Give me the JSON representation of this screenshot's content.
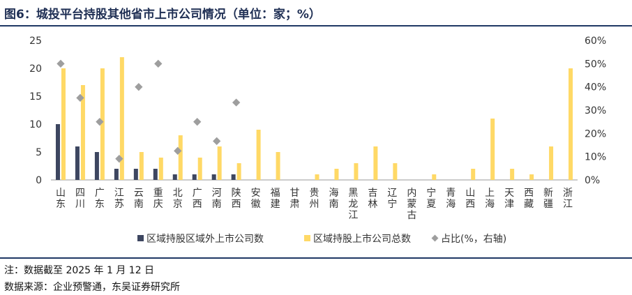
{
  "header": {
    "title": "图6：城投平台持股其他省市上市公司情况（单位：家；%）"
  },
  "notes": {
    "note": "注：数据截至 2025 年 1 月 12 日",
    "source": "数据来源：企业预警通，东吴证券研究所"
  },
  "colors": {
    "outside": "#3d4660",
    "total": "#ffd966",
    "ratio": "#9e9e9e",
    "rule": "#1f3864"
  },
  "chart_data": {
    "type": "bar",
    "title": "",
    "categories": [
      "山东",
      "四川",
      "广东",
      "江苏",
      "云南",
      "重庆",
      "北京",
      "广西",
      "河南",
      "陕西",
      "安徽",
      "福建",
      "甘肃",
      "贵州",
      "海南",
      "黑龙江",
      "吉林",
      "辽宁",
      "内蒙古",
      "宁夏",
      "青海",
      "山西",
      "上海",
      "天津",
      "西藏",
      "新疆",
      "浙江"
    ],
    "series": [
      {
        "name": "区域持股区域外上市公司数",
        "kind": "bar",
        "axis": "left",
        "values": [
          10,
          6,
          5,
          2,
          2,
          2,
          1,
          1,
          1,
          1,
          0,
          0,
          0,
          0,
          0,
          0,
          0,
          0,
          0,
          0,
          0,
          0,
          0,
          0,
          0,
          0,
          0
        ]
      },
      {
        "name": "区域持股上市公司总数",
        "kind": "bar",
        "axis": "left",
        "values": [
          20,
          17,
          20,
          22,
          5,
          4,
          8,
          4,
          6,
          3,
          9,
          5,
          0,
          1,
          2,
          3,
          6,
          3,
          0,
          1,
          0,
          2,
          11,
          2,
          1,
          6,
          20
        ]
      },
      {
        "name": "占比(%，右轴)",
        "kind": "scatter",
        "axis": "right",
        "values": [
          50,
          35.3,
          25,
          9.1,
          40,
          50,
          12.5,
          25,
          16.7,
          33.3,
          null,
          null,
          null,
          null,
          null,
          null,
          null,
          null,
          null,
          null,
          null,
          null,
          null,
          null,
          null,
          null,
          null
        ]
      }
    ],
    "y_left": {
      "min": 0,
      "max": 25,
      "ticks": [
        "0",
        "5",
        "10",
        "15",
        "20",
        "25"
      ]
    },
    "y_right": {
      "min": 0,
      "max": 60,
      "ticks": [
        "0%",
        "10%",
        "20%",
        "30%",
        "40%",
        "50%",
        "60%"
      ]
    },
    "legend": "bottom",
    "grid": false
  }
}
